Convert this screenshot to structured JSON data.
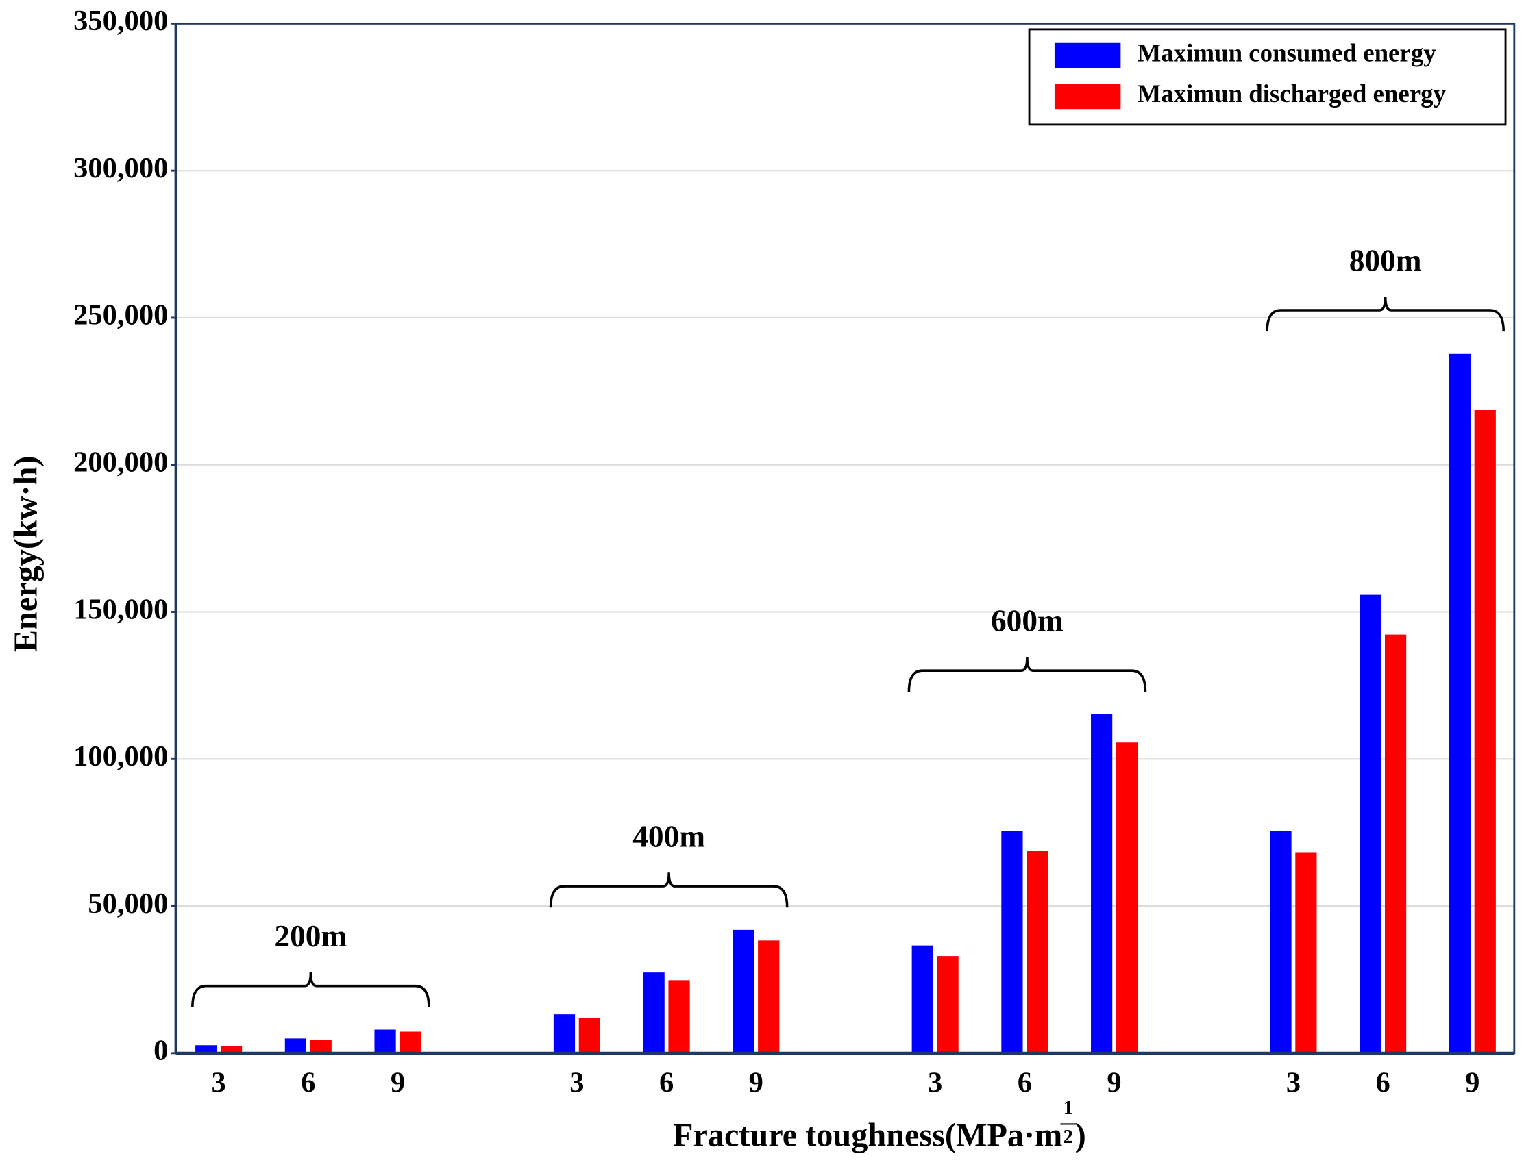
{
  "chart_data": {
    "type": "bar",
    "ylabel": "Energy(kw·h)",
    "xlabel": {
      "text": "Fracture toughness(MPa·m",
      "exponent_numerator": "1",
      "exponent_denominator": "2",
      "close": ")"
    },
    "categories": [
      "3",
      "6",
      "9",
      null,
      "3",
      "6",
      "9",
      null,
      "3",
      "6",
      "9",
      null,
      "3",
      "6",
      "9"
    ],
    "series": [
      {
        "name": "Maximun consumed energy",
        "color": "#0000ff",
        "values": [
          2700,
          5000,
          8000,
          null,
          13200,
          27400,
          41900,
          null,
          36600,
          75600,
          115200,
          null,
          75600,
          155800,
          237700
        ]
      },
      {
        "name": "Maximun discharged energy",
        "color": "#ff0000",
        "values": [
          2300,
          4600,
          7300,
          null,
          11900,
          24800,
          38300,
          null,
          33000,
          68700,
          105600,
          null,
          68300,
          142300,
          218600
        ]
      }
    ],
    "annotations": [
      "200m",
      "400m",
      "600m",
      "800m"
    ],
    "ylim": [
      0,
      350000
    ],
    "yticks": [
      0,
      {
        "value": 50000,
        "label": "50,000"
      },
      {
        "value": 100000,
        "label": "100,000"
      },
      {
        "value": 150000,
        "label": "150,000"
      },
      {
        "value": 200000,
        "label": "200,000"
      },
      {
        "value": 250000,
        "label": "250,000"
      },
      {
        "value": 300000,
        "label": "300,000"
      },
      {
        "value": 350000,
        "label": "350,000"
      }
    ],
    "grid": true,
    "legend": "upper right"
  }
}
